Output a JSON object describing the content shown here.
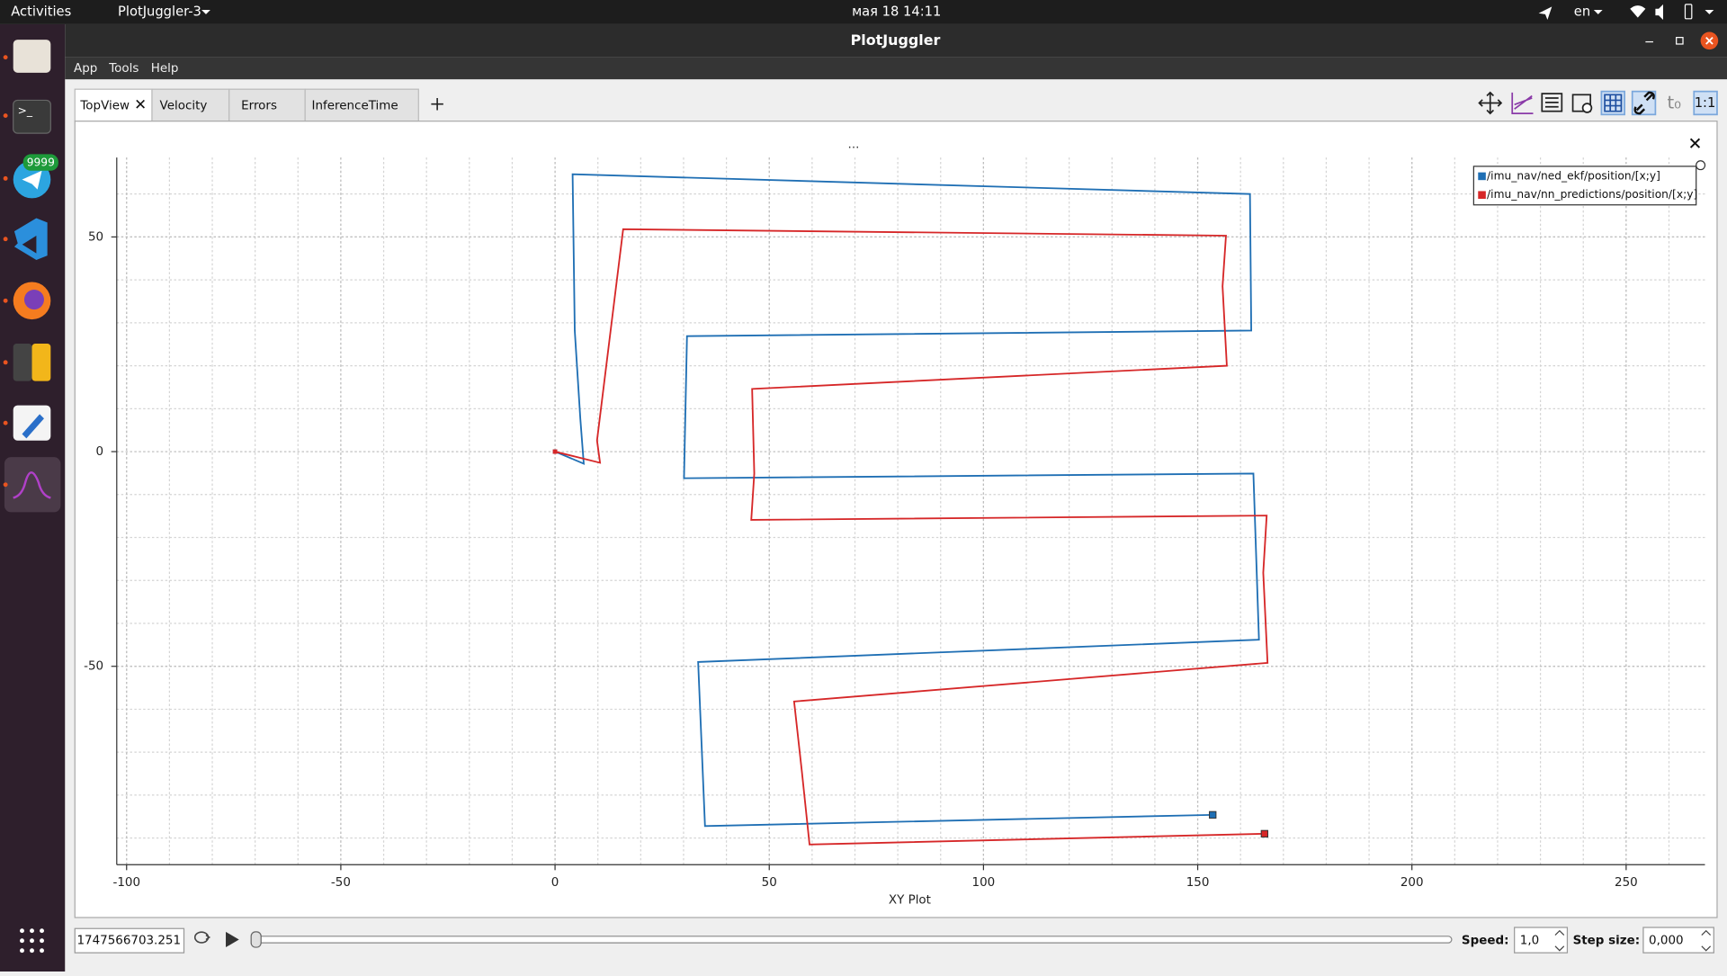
{
  "top_bar": {
    "activities": "Activities",
    "app_menu": "PlotJuggler-3",
    "clock": "мая 18  14:11",
    "language": "en"
  },
  "dock": {
    "badge": "9999"
  },
  "window": {
    "title": "PlotJuggler",
    "menu": [
      "App",
      "Tools",
      "Help"
    ],
    "tabs": [
      "TopView",
      "Velocity",
      "Errors",
      "InferenceTime"
    ],
    "toolbar": {
      "t0": "t₀",
      "ratio": "1:1"
    }
  },
  "plot_menu": "...",
  "chart_data": {
    "type": "line",
    "xlabel": "XY Plot",
    "xlim": [
      -102.3,
      268.4
    ],
    "ylim": [
      -96.2,
      68.5
    ],
    "xticks": [
      -100,
      -50,
      0,
      50,
      100,
      150,
      200,
      250
    ],
    "yticks": [
      -50,
      0,
      50
    ],
    "grid": true,
    "minor_grid": true,
    "legend": "upper right",
    "series": [
      {
        "name": "/imu_nav/ned_ekf/position/[x;y]",
        "color": "#1f6fb4",
        "x": [
          0,
          6.7,
          5.9,
          4.6,
          4.1,
          162.2,
          162.5,
          30.8,
          30.1,
          163,
          164.3,
          33.4,
          35,
          153.5
        ],
        "values": [
          0,
          -2.8,
          7.7,
          28.2,
          64.6,
          60,
          28.2,
          26.9,
          -6.2,
          -5.1,
          -43.8,
          -49,
          -87.2,
          -84.6
        ]
      },
      {
        "name": "/imu_nav/nn_predictions/position/[x;y]",
        "color": "#d62728",
        "x": [
          0,
          10.5,
          9.8,
          15.9,
          156.6,
          155.8,
          156.8,
          46,
          46.5,
          45.8,
          166.1,
          165.3,
          166.3,
          55.8,
          57.6,
          59.4,
          165.6
        ],
        "values": [
          0,
          -2.6,
          2.6,
          51.8,
          50.3,
          38.5,
          20,
          14.6,
          -5.1,
          -15.9,
          -14.9,
          -28.2,
          -49.2,
          -58.2,
          -74.4,
          -91.5,
          -89
        ]
      }
    ]
  },
  "player": {
    "timestamp": "1747566703.251",
    "speed_label": "Speed:",
    "speed": "1,0",
    "step_label": "Step size:",
    "step": "0,000"
  }
}
